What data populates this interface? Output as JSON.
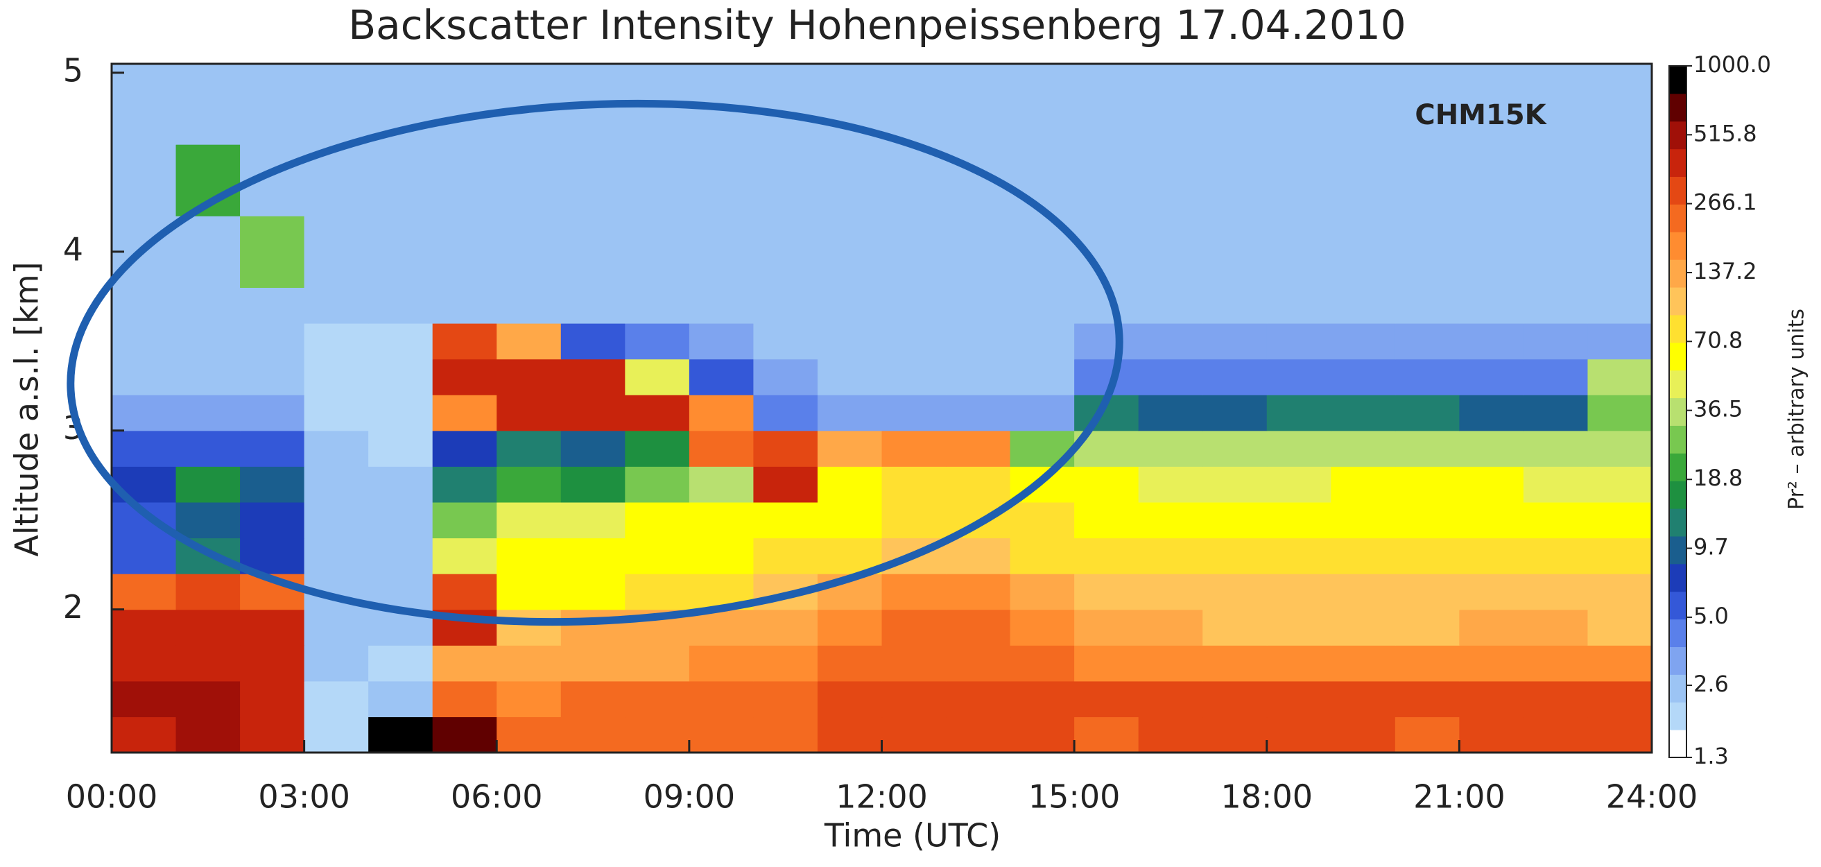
{
  "chart_data": {
    "type": "heatmap",
    "title": "Backscatter Intensity Hohenpeissenberg 17.04.2010",
    "xlabel": "Time (UTC)",
    "ylabel": "Altitude a.s.l. [km]",
    "annotation": "CHM15K",
    "xlim": [
      0,
      24
    ],
    "xticks": [
      {
        "value": 0,
        "label": "00:00"
      },
      {
        "value": 3,
        "label": "03:00"
      },
      {
        "value": 6,
        "label": "06:00"
      },
      {
        "value": 9,
        "label": "09:00"
      },
      {
        "value": 12,
        "label": "12:00"
      },
      {
        "value": 15,
        "label": "15:00"
      },
      {
        "value": 18,
        "label": "18:00"
      },
      {
        "value": 21,
        "label": "21:00"
      },
      {
        "value": 24,
        "label": "24:00"
      }
    ],
    "ylim": [
      1.2,
      5.05
    ],
    "yticks": [
      2,
      3,
      4,
      5
    ],
    "xbins": [
      0,
      1,
      2,
      3,
      4,
      5,
      6,
      7,
      8,
      9,
      10,
      11,
      12,
      13,
      14,
      15,
      16,
      17,
      18,
      19,
      20,
      21,
      22,
      23,
      24
    ],
    "ybins": [
      1.2,
      1.4,
      1.6,
      1.8,
      2.0,
      2.2,
      2.4,
      2.6,
      2.8,
      3.0,
      3.2,
      3.4,
      3.6,
      3.8,
      4.2,
      4.6,
      5.05
    ],
    "values": [
      [
        450,
        500,
        450,
        2.2,
        900,
        600,
        220,
        220,
        230,
        230,
        250,
        300,
        320,
        320,
        300,
        260,
        280,
        300,
        300,
        290,
        260,
        290,
        300,
        280
      ],
      [
        500,
        480,
        450,
        2.2,
        2.4,
        250,
        200,
        210,
        220,
        220,
        240,
        300,
        300,
        290,
        280,
        320,
        330,
        330,
        300,
        280,
        300,
        330,
        320,
        300
      ],
      [
        450,
        450,
        400,
        2.3,
        2.2,
        150,
        140,
        150,
        150,
        160,
        170,
        220,
        230,
        230,
        220,
        200,
        190,
        180,
        180,
        170,
        180,
        190,
        190,
        180
      ],
      [
        420,
        400,
        380,
        2.4,
        2.3,
        350,
        110,
        120,
        120,
        130,
        150,
        200,
        220,
        220,
        200,
        130,
        120,
        110,
        110,
        110,
        110,
        120,
        120,
        115
      ],
      [
        250,
        300,
        250,
        2.6,
        2.4,
        300,
        60,
        70,
        80,
        75,
        100,
        150,
        180,
        180,
        140,
        100,
        100,
        95,
        95,
        95,
        100,
        100,
        100,
        95
      ],
      [
        6,
        12,
        8,
        2.5,
        2.4,
        50,
        55,
        60,
        65,
        65,
        80,
        90,
        110,
        100,
        90,
        85,
        80,
        80,
        80,
        80,
        85,
        85,
        80,
        75
      ],
      [
        5,
        10,
        7,
        2.4,
        2.3,
        30,
        45,
        50,
        55,
        55,
        70,
        70,
        90,
        90,
        75,
        70,
        70,
        65,
        65,
        65,
        70,
        70,
        65,
        60
      ],
      [
        8,
        15,
        10,
        2.4,
        2.3,
        12,
        20,
        18,
        25,
        35,
        350,
        60,
        80,
        90,
        70,
        55,
        50,
        50,
        50,
        55,
        55,
        55,
        50,
        50
      ],
      [
        6,
        5,
        5,
        2.3,
        2.2,
        8,
        12,
        10,
        15,
        250,
        300,
        150,
        200,
        200,
        30,
        40,
        35,
        35,
        38,
        40,
        40,
        38,
        35,
        35
      ],
      [
        3,
        3,
        3,
        2.2,
        2.2,
        200,
        350,
        400,
        380,
        200,
        4,
        3,
        3,
        3,
        3,
        12,
        10,
        10,
        12,
        12,
        12,
        10,
        10,
        30
      ],
      [
        2.6,
        2.5,
        2.6,
        2.2,
        2.2,
        350,
        420,
        350,
        50,
        5,
        3,
        2.8,
        2.8,
        2.8,
        2.8,
        4,
        4,
        4,
        4,
        4,
        4,
        4,
        4,
        40
      ],
      [
        2.5,
        2.5,
        2.5,
        2.2,
        2.2,
        300,
        120,
        6,
        4,
        3,
        2.8,
        2.6,
        2.6,
        2.6,
        2.6,
        3,
        3,
        3,
        3,
        3,
        3,
        3,
        3,
        3
      ],
      [
        2.5,
        2.5,
        2.5,
        2.3,
        2.3,
        2.5,
        2.5,
        2.5,
        2.5,
        2.5,
        2.5,
        2.5,
        2.5,
        2.5,
        2.5,
        2.8,
        2.8,
        2.8,
        2.8,
        2.8,
        2.8,
        2.8,
        2.8,
        2.8
      ],
      [
        2.5,
        2.5,
        30,
        2.3,
        2.3,
        2.5,
        2.5,
        2.5,
        2.5,
        2.5,
        2.5,
        2.5,
        2.5,
        2.5,
        2.5,
        2.5,
        2.5,
        2.5,
        2.5,
        2.5,
        2.5,
        2.5,
        2.5,
        2.5
      ],
      [
        2.5,
        20,
        2.5,
        2.3,
        2.3,
        2.5,
        2.5,
        2.5,
        2.5,
        2.5,
        2.5,
        2.5,
        2.5,
        2.5,
        2.5,
        2.5,
        2.5,
        2.5,
        2.5,
        2.5,
        2.5,
        2.5,
        2.5,
        2.5
      ],
      [
        2.5,
        2.5,
        2.5,
        2.4,
        2.4,
        2.5,
        2.5,
        2.5,
        2.5,
        2.5,
        2.5,
        2.5,
        2.5,
        2.5,
        2.5,
        2.5,
        2.5,
        2.5,
        2.5,
        2.5,
        2.5,
        2.5,
        2.5,
        2.5
      ]
    ],
    "colorbar": {
      "label": "Pr² – arbitrary units",
      "scale": "log",
      "clim": [
        1.3,
        1000
      ],
      "ticks": [
        1.3,
        2.6,
        {
          "value": 5.0,
          "label": "5.0"
        },
        9.7,
        18.8,
        36.5,
        70.8,
        137.2,
        266.1,
        515.8,
        {
          "value": 1000.0,
          "label": "1000.0"
        }
      ],
      "colors": [
        "#ffffff",
        "#b4d8f8",
        "#9cc4f4",
        "#7fa4f0",
        "#5a80ea",
        "#3458d8",
        "#1c3cb8",
        "#1a5e8e",
        "#208070",
        "#1e9040",
        "#3aa83a",
        "#78c850",
        "#b8e070",
        "#e8f058",
        "#ffff00",
        "#ffe030",
        "#ffc45a",
        "#ffa848",
        "#ff8c30",
        "#f46a20",
        "#e44814",
        "#c8240c",
        "#a01008",
        "#600000",
        "#000000"
      ]
    }
  }
}
